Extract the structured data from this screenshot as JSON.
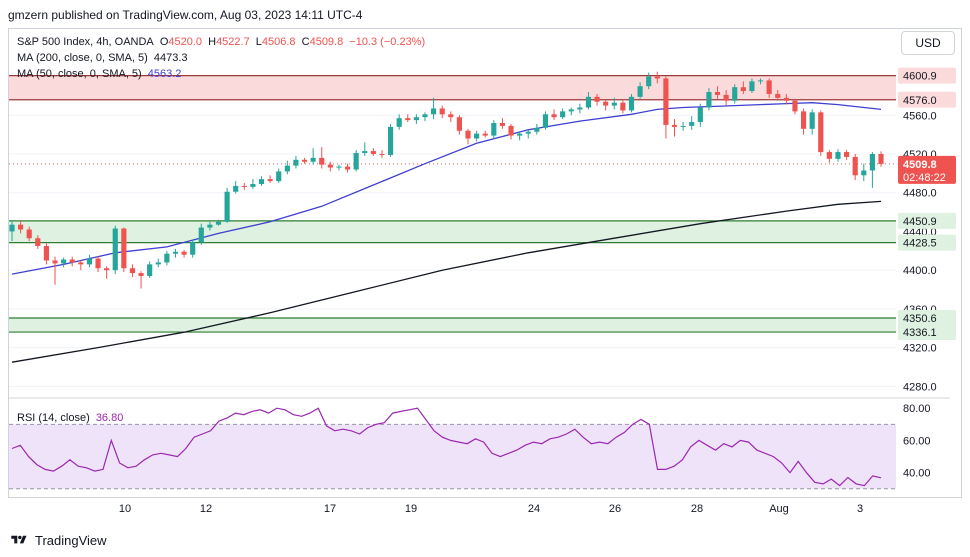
{
  "header": {
    "publisher": "gmzern published on TradingView.com, Aug 03, 2023 14:11 UTC-4"
  },
  "legend": {
    "symbol": "S&P 500 Index, 4h, OANDA",
    "o_label": "O",
    "o_value": "4520.0",
    "h_label": "H",
    "h_value": "4522.7",
    "l_label": "L",
    "l_value": "4506.8",
    "c_label": "C",
    "c_value": "4509.8",
    "change": "−10.3 (−0.23%)",
    "ma200_label": "MA (200, close, 0, SMA, 5)",
    "ma200_value": "4473.3",
    "ma50_label": "MA (50, close, 0, SMA, 5)",
    "ma50_value": "4563.2",
    "rsi_label": "RSI (14, close)",
    "rsi_value": "36.80"
  },
  "currency_button": "USD",
  "footer": {
    "brand": "TradingView"
  },
  "colors": {
    "up": "#26a69a",
    "down": "#ef5350",
    "ma50": "#3f3fd0",
    "ma200": "#131722",
    "resistance_fill": "#fbdadb",
    "support_fill": "#dff1e0",
    "rsi_line": "#9c27b0",
    "rsi_band": "#efe3fa"
  },
  "chart_data": [
    {
      "type": "candlestick",
      "y_axis_ticks": [
        4280.0,
        4320.0,
        4360.0,
        4400.0,
        4440.0,
        4480.0,
        4520.0,
        4560.0
      ],
      "ylim": [
        4268,
        4615
      ],
      "x_tick_labels": [
        "10",
        "12",
        "17",
        "19",
        "24",
        "26",
        "28",
        "Aug",
        "3"
      ],
      "price_labels": [
        {
          "text": "4600.9",
          "value": 4600.9,
          "kind": "zone"
        },
        {
          "text": "4576.0",
          "value": 4576.0,
          "kind": "zone"
        },
        {
          "text": "4509.8",
          "value": 4509.8,
          "kind": "last"
        },
        {
          "text": "02:48:22",
          "kind": "countdown"
        },
        {
          "text": "4450.9",
          "value": 4450.9,
          "kind": "support"
        },
        {
          "text": "4428.5",
          "value": 4428.5,
          "kind": "support"
        },
        {
          "text": "4350.6",
          "value": 4350.6,
          "kind": "support"
        },
        {
          "text": "4336.1",
          "value": 4336.1,
          "kind": "support"
        }
      ],
      "zones": [
        {
          "from": 4576.0,
          "to": 4600.9,
          "kind": "resistance"
        },
        {
          "from": 4428.5,
          "to": 4450.9,
          "kind": "support"
        },
        {
          "from": 4336.1,
          "to": 4350.6,
          "kind": "support"
        }
      ],
      "last_price": 4509.8,
      "candles": [
        {
          "o": 4440,
          "h": 4451,
          "l": 4430,
          "c": 4447
        },
        {
          "o": 4447,
          "h": 4451,
          "l": 4438,
          "c": 4442
        },
        {
          "o": 4442,
          "h": 4445,
          "l": 4430,
          "c": 4433
        },
        {
          "o": 4433,
          "h": 4436,
          "l": 4422,
          "c": 4425
        },
        {
          "o": 4425,
          "h": 4428,
          "l": 4406,
          "c": 4410
        },
        {
          "o": 4410,
          "h": 4414,
          "l": 4385,
          "c": 4407
        },
        {
          "o": 4407,
          "h": 4413,
          "l": 4403,
          "c": 4411
        },
        {
          "o": 4411,
          "h": 4414,
          "l": 4404,
          "c": 4408
        },
        {
          "o": 4408,
          "h": 4410,
          "l": 4400,
          "c": 4406
        },
        {
          "o": 4406,
          "h": 4416,
          "l": 4403,
          "c": 4412
        },
        {
          "o": 4412,
          "h": 4414,
          "l": 4398,
          "c": 4402
        },
        {
          "o": 4402,
          "h": 4404,
          "l": 4391,
          "c": 4400
        },
        {
          "o": 4400,
          "h": 4446,
          "l": 4396,
          "c": 4443
        },
        {
          "o": 4443,
          "h": 4444,
          "l": 4398,
          "c": 4402
        },
        {
          "o": 4402,
          "h": 4406,
          "l": 4393,
          "c": 4397
        },
        {
          "o": 4397,
          "h": 4399,
          "l": 4381,
          "c": 4394
        },
        {
          "o": 4394,
          "h": 4409,
          "l": 4392,
          "c": 4406
        },
        {
          "o": 4406,
          "h": 4412,
          "l": 4403,
          "c": 4408
        },
        {
          "o": 4408,
          "h": 4420,
          "l": 4405,
          "c": 4417
        },
        {
          "o": 4417,
          "h": 4422,
          "l": 4413,
          "c": 4419
        },
        {
          "o": 4419,
          "h": 4421,
          "l": 4413,
          "c": 4416
        },
        {
          "o": 4416,
          "h": 4432,
          "l": 4413,
          "c": 4429
        },
        {
          "o": 4429,
          "h": 4448,
          "l": 4426,
          "c": 4444
        },
        {
          "o": 4444,
          "h": 4450,
          "l": 4441,
          "c": 4447
        },
        {
          "o": 4447,
          "h": 4452,
          "l": 4446,
          "c": 4450
        },
        {
          "o": 4450,
          "h": 4485,
          "l": 4449,
          "c": 4481
        },
        {
          "o": 4481,
          "h": 4492,
          "l": 4479,
          "c": 4487
        },
        {
          "o": 4487,
          "h": 4490,
          "l": 4483,
          "c": 4486
        },
        {
          "o": 4486,
          "h": 4494,
          "l": 4484,
          "c": 4489
        },
        {
          "o": 4489,
          "h": 4497,
          "l": 4487,
          "c": 4494
        },
        {
          "o": 4494,
          "h": 4498,
          "l": 4490,
          "c": 4492
        },
        {
          "o": 4492,
          "h": 4505,
          "l": 4490,
          "c": 4502
        },
        {
          "o": 4502,
          "h": 4513,
          "l": 4499,
          "c": 4508
        },
        {
          "o": 4508,
          "h": 4518,
          "l": 4505,
          "c": 4514
        },
        {
          "o": 4514,
          "h": 4516,
          "l": 4510,
          "c": 4512
        },
        {
          "o": 4512,
          "h": 4526,
          "l": 4509,
          "c": 4516
        },
        {
          "o": 4516,
          "h": 4527,
          "l": 4505,
          "c": 4509
        },
        {
          "o": 4509,
          "h": 4512,
          "l": 4502,
          "c": 4506
        },
        {
          "o": 4506,
          "h": 4509,
          "l": 4503,
          "c": 4507
        },
        {
          "o": 4507,
          "h": 4510,
          "l": 4501,
          "c": 4504
        },
        {
          "o": 4504,
          "h": 4524,
          "l": 4502,
          "c": 4521
        },
        {
          "o": 4521,
          "h": 4532,
          "l": 4518,
          "c": 4523
        },
        {
          "o": 4523,
          "h": 4526,
          "l": 4518,
          "c": 4520
        },
        {
          "o": 4520,
          "h": 4524,
          "l": 4516,
          "c": 4519
        },
        {
          "o": 4519,
          "h": 4551,
          "l": 4517,
          "c": 4548
        },
        {
          "o": 4548,
          "h": 4561,
          "l": 4545,
          "c": 4557
        },
        {
          "o": 4557,
          "h": 4561,
          "l": 4553,
          "c": 4555
        },
        {
          "o": 4555,
          "h": 4561,
          "l": 4551,
          "c": 4558
        },
        {
          "o": 4558,
          "h": 4563,
          "l": 4554,
          "c": 4561
        },
        {
          "o": 4561,
          "h": 4578,
          "l": 4556,
          "c": 4567
        },
        {
          "o": 4567,
          "h": 4570,
          "l": 4557,
          "c": 4561
        },
        {
          "o": 4561,
          "h": 4564,
          "l": 4553,
          "c": 4558
        },
        {
          "o": 4558,
          "h": 4560,
          "l": 4540,
          "c": 4544
        },
        {
          "o": 4544,
          "h": 4546,
          "l": 4530,
          "c": 4536
        },
        {
          "o": 4536,
          "h": 4544,
          "l": 4533,
          "c": 4541
        },
        {
          "o": 4541,
          "h": 4544,
          "l": 4537,
          "c": 4539
        },
        {
          "o": 4539,
          "h": 4555,
          "l": 4536,
          "c": 4552
        },
        {
          "o": 4552,
          "h": 4557,
          "l": 4546,
          "c": 4549
        },
        {
          "o": 4549,
          "h": 4551,
          "l": 4535,
          "c": 4539
        },
        {
          "o": 4539,
          "h": 4543,
          "l": 4534,
          "c": 4541
        },
        {
          "o": 4541,
          "h": 4545,
          "l": 4536,
          "c": 4543
        },
        {
          "o": 4543,
          "h": 4551,
          "l": 4540,
          "c": 4547
        },
        {
          "o": 4547,
          "h": 4564,
          "l": 4545,
          "c": 4561
        },
        {
          "o": 4561,
          "h": 4566,
          "l": 4555,
          "c": 4558
        },
        {
          "o": 4558,
          "h": 4567,
          "l": 4556,
          "c": 4564
        },
        {
          "o": 4564,
          "h": 4568,
          "l": 4560,
          "c": 4566
        },
        {
          "o": 4566,
          "h": 4572,
          "l": 4562,
          "c": 4568
        },
        {
          "o": 4568,
          "h": 4584,
          "l": 4566,
          "c": 4579
        },
        {
          "o": 4579,
          "h": 4582,
          "l": 4570,
          "c": 4574
        },
        {
          "o": 4574,
          "h": 4576,
          "l": 4565,
          "c": 4570
        },
        {
          "o": 4570,
          "h": 4578,
          "l": 4566,
          "c": 4573
        },
        {
          "o": 4573,
          "h": 4576,
          "l": 4562,
          "c": 4565
        },
        {
          "o": 4565,
          "h": 4582,
          "l": 4563,
          "c": 4579
        },
        {
          "o": 4579,
          "h": 4594,
          "l": 4577,
          "c": 4590
        },
        {
          "o": 4590,
          "h": 4604,
          "l": 4587,
          "c": 4600
        },
        {
          "o": 4600,
          "h": 4605,
          "l": 4593,
          "c": 4598
        },
        {
          "o": 4598,
          "h": 4600,
          "l": 4536,
          "c": 4550
        },
        {
          "o": 4550,
          "h": 4556,
          "l": 4538,
          "c": 4548
        },
        {
          "o": 4548,
          "h": 4553,
          "l": 4544,
          "c": 4549
        },
        {
          "o": 4549,
          "h": 4559,
          "l": 4545,
          "c": 4553
        },
        {
          "o": 4553,
          "h": 4572,
          "l": 4548,
          "c": 4568
        },
        {
          "o": 4568,
          "h": 4588,
          "l": 4565,
          "c": 4584
        },
        {
          "o": 4584,
          "h": 4590,
          "l": 4577,
          "c": 4581
        },
        {
          "o": 4581,
          "h": 4586,
          "l": 4570,
          "c": 4575
        },
        {
          "o": 4575,
          "h": 4592,
          "l": 4572,
          "c": 4589
        },
        {
          "o": 4589,
          "h": 4595,
          "l": 4582,
          "c": 4585
        },
        {
          "o": 4585,
          "h": 4598,
          "l": 4583,
          "c": 4595
        },
        {
          "o": 4595,
          "h": 4598,
          "l": 4592,
          "c": 4596
        },
        {
          "o": 4596,
          "h": 4598,
          "l": 4578,
          "c": 4582
        },
        {
          "o": 4582,
          "h": 4586,
          "l": 4575,
          "c": 4578
        },
        {
          "o": 4578,
          "h": 4582,
          "l": 4571,
          "c": 4575
        },
        {
          "o": 4575,
          "h": 4577,
          "l": 4561,
          "c": 4564
        },
        {
          "o": 4564,
          "h": 4567,
          "l": 4540,
          "c": 4546
        },
        {
          "o": 4546,
          "h": 4566,
          "l": 4540,
          "c": 4563
        },
        {
          "o": 4563,
          "h": 4565,
          "l": 4518,
          "c": 4522
        },
        {
          "o": 4522,
          "h": 4524,
          "l": 4511,
          "c": 4515
        },
        {
          "o": 4515,
          "h": 4525,
          "l": 4512,
          "c": 4522
        },
        {
          "o": 4522,
          "h": 4524,
          "l": 4514,
          "c": 4517
        },
        {
          "o": 4517,
          "h": 4520,
          "l": 4493,
          "c": 4498
        },
        {
          "o": 4498,
          "h": 4510,
          "l": 4492,
          "c": 4503
        },
        {
          "o": 4503,
          "h": 4522,
          "l": 4485,
          "c": 4520
        },
        {
          "o": 4520,
          "h": 4522.7,
          "l": 4506.8,
          "c": 4509.8
        }
      ],
      "ma50_points": [
        [
          0,
          4396
        ],
        [
          6,
          4406
        ],
        [
          12,
          4418
        ],
        [
          18,
          4424
        ],
        [
          24,
          4438
        ],
        [
          30,
          4450
        ],
        [
          36,
          4466
        ],
        [
          42,
          4488
        ],
        [
          48,
          4510
        ],
        [
          54,
          4531
        ],
        [
          60,
          4545
        ],
        [
          66,
          4554
        ],
        [
          72,
          4561
        ],
        [
          75,
          4566
        ],
        [
          78,
          4568
        ],
        [
          84,
          4570
        ],
        [
          90,
          4572
        ],
        [
          93,
          4573
        ],
        [
          96,
          4571
        ],
        [
          101,
          4566
        ]
      ],
      "ma200_points": [
        [
          0,
          4305
        ],
        [
          10,
          4320
        ],
        [
          20,
          4336
        ],
        [
          30,
          4356
        ],
        [
          40,
          4378
        ],
        [
          50,
          4400
        ],
        [
          60,
          4418
        ],
        [
          70,
          4433
        ],
        [
          80,
          4448
        ],
        [
          90,
          4461
        ],
        [
          96,
          4468
        ],
        [
          101,
          4471
        ]
      ]
    },
    {
      "type": "line",
      "name": "RSI (14, close)",
      "y_axis_ticks": [
        40.0,
        60.0,
        80.0
      ],
      "ylim": [
        28,
        82
      ],
      "bands": [
        30,
        70
      ],
      "values": [
        55,
        57,
        50,
        45,
        42,
        41,
        44,
        48,
        44,
        43,
        41,
        42,
        60,
        46,
        43,
        44,
        48,
        51,
        52,
        51,
        50,
        55,
        62,
        64,
        66,
        72,
        74,
        77,
        76,
        78,
        79,
        77,
        80,
        79,
        76,
        75,
        77,
        80,
        69,
        66,
        67,
        66,
        64,
        68,
        70,
        71,
        77,
        78,
        79,
        80,
        73,
        66,
        62,
        60,
        59,
        58,
        61,
        59,
        52,
        50,
        52,
        54,
        57,
        59,
        58,
        61,
        62,
        64,
        67,
        62,
        58,
        59,
        58,
        62,
        65,
        70,
        73,
        70,
        42,
        42,
        44,
        48,
        56,
        60,
        57,
        54,
        58,
        56,
        60,
        59,
        54,
        52,
        50,
        46,
        40,
        47,
        40,
        34,
        33,
        36,
        32,
        37,
        33,
        32,
        38,
        36.8
      ]
    }
  ]
}
